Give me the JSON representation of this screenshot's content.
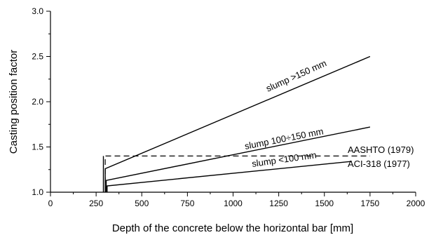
{
  "chart_data": {
    "type": "line",
    "xlabel": "Depth of the concrete below the horizontal bar [mm]",
    "ylabel": "Casting position factor",
    "xlim": [
      0,
      2000
    ],
    "ylim": [
      1.0,
      3.0
    ],
    "x_ticks": [
      0,
      250,
      500,
      750,
      1000,
      1250,
      1500,
      1750,
      2000
    ],
    "x_tick_labels": [
      "0",
      "250",
      "500",
      "750",
      "1000",
      "1250",
      "1500",
      "1750",
      "2000"
    ],
    "x_minor_step": 125,
    "y_ticks": [
      1.0,
      1.5,
      2.0,
      2.5,
      3.0
    ],
    "y_tick_labels": [
      "1.0",
      "1.5",
      "2.0",
      "2.5",
      "3.0"
    ],
    "y_minor_step": 0.25,
    "grid": false,
    "series": [
      {
        "id": "slump-gt-150",
        "name": "slump >150 mm",
        "style": "solid",
        "x": [
          300,
          300,
          1750
        ],
        "y": [
          1.0,
          1.26,
          2.5
        ]
      },
      {
        "id": "slump-100-150",
        "name": "slump 100÷150 mm",
        "style": "solid",
        "x": [
          305,
          305,
          1750
        ],
        "y": [
          1.0,
          1.13,
          1.72
        ]
      },
      {
        "id": "slump-lt-100",
        "name": "slump <100 mm",
        "style": "solid",
        "x": [
          1650,
          310,
          310
        ],
        "y": [
          1.34,
          1.07,
          1.0
        ]
      },
      {
        "id": "aashto",
        "name": "AASHTO (1979)",
        "style": "dashed",
        "x": [
          300,
          300,
          1750
        ],
        "y": [
          1.0,
          1.4,
          1.4
        ]
      },
      {
        "id": "aci-318",
        "name": "ACI-318 (1977)",
        "style": "solid",
        "x": [
          290,
          290
        ],
        "y": [
          1.0,
          1.4
        ]
      }
    ]
  }
}
